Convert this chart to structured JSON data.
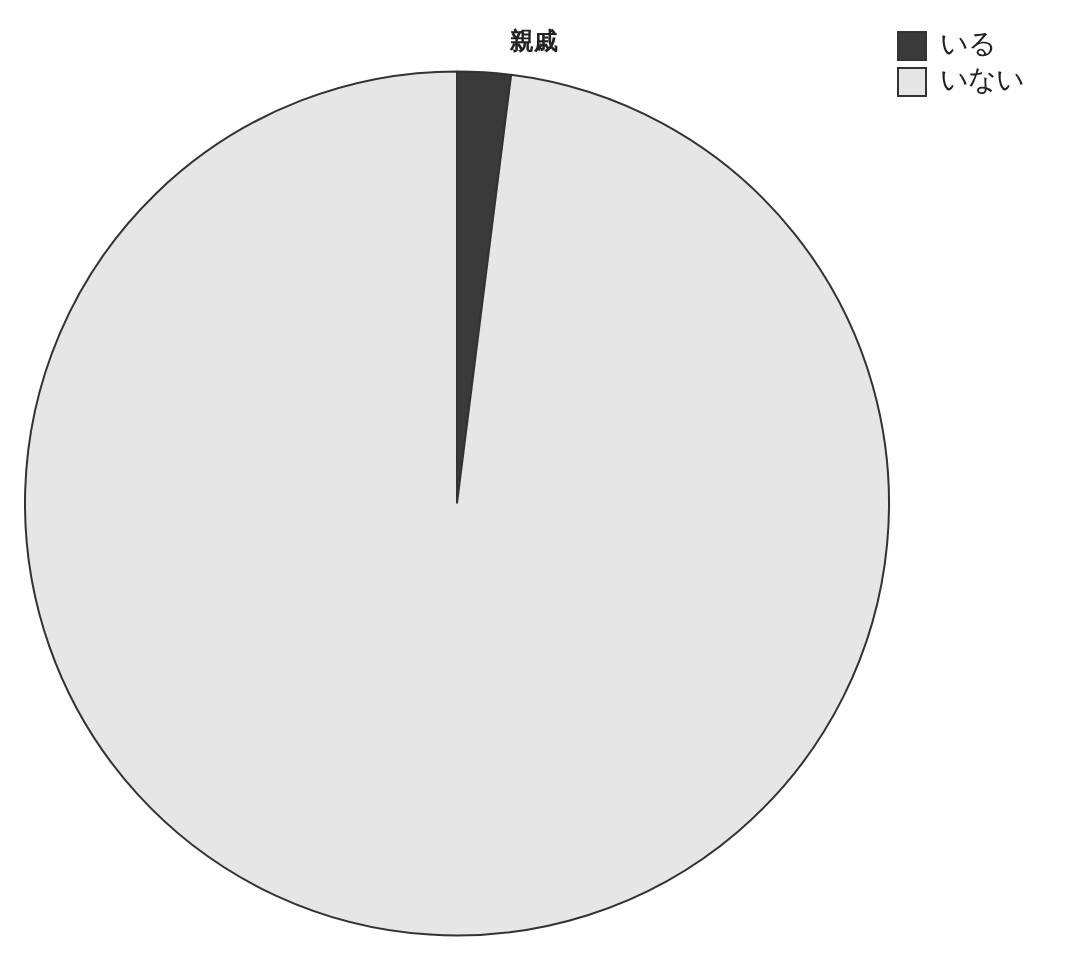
{
  "chart_data": {
    "type": "pie",
    "title": "親戚",
    "categories": [
      "いる",
      "いない"
    ],
    "values": [
      2,
      98
    ],
    "colors": [
      "#3a3a3a",
      "#e6e6e6"
    ],
    "legend": "top right"
  }
}
